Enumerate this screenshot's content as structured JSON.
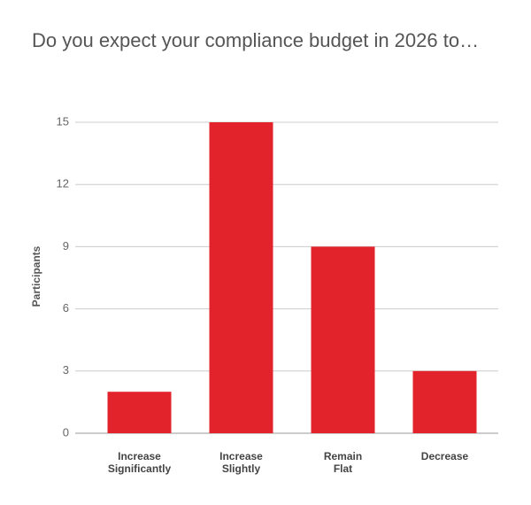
{
  "chart_data": {
    "type": "bar",
    "title": "Do you expect your compliance budget in 2026 to…",
    "y_label": "Participants",
    "categories": [
      "Increase Significantly",
      "Increase Slightly",
      "Remain Flat",
      "Decrease"
    ],
    "values": [
      2,
      15,
      9,
      3
    ],
    "color": "#e3232b",
    "ylim": [
      0,
      15
    ],
    "yticks": [
      0,
      3,
      6,
      9,
      12,
      15
    ],
    "grid": true
  }
}
